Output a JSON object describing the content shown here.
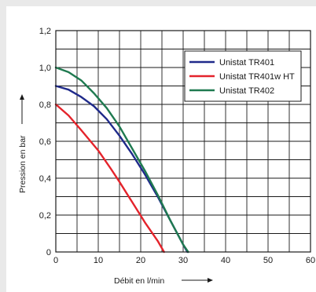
{
  "chart_data": {
    "type": "line",
    "title": "",
    "xlabel": "Débit en l/min",
    "ylabel": "Pression en bar",
    "xlim": [
      0,
      60
    ],
    "ylim": [
      0,
      1.2
    ],
    "xticks": [
      "0",
      "10",
      "20",
      "30",
      "40",
      "50",
      "60"
    ],
    "yticks": [
      "0",
      "0,2",
      "0,4",
      "0,6",
      "0,8",
      "1,0",
      "1,2"
    ],
    "grid": true,
    "legend_position": "top-right",
    "series": [
      {
        "name": "Unistat TR401",
        "color": "#1f2a8a",
        "x": [
          0,
          3,
          6,
          9,
          12,
          15,
          18,
          21,
          24,
          27,
          30,
          31
        ],
        "y": [
          0.9,
          0.88,
          0.84,
          0.79,
          0.72,
          0.63,
          0.53,
          0.42,
          0.3,
          0.17,
          0.04,
          0.0
        ]
      },
      {
        "name": "Unistat TR401w HT",
        "color": "#e4232b",
        "x": [
          0,
          3,
          6,
          10,
          13,
          15,
          18,
          21,
          24,
          25.5
        ],
        "y": [
          0.8,
          0.74,
          0.66,
          0.55,
          0.45,
          0.38,
          0.27,
          0.16,
          0.06,
          0.0
        ]
      },
      {
        "name": "Unistat TR402",
        "color": "#1f7a50",
        "x": [
          0,
          3,
          6,
          9,
          12,
          15,
          18,
          21,
          24,
          27,
          30,
          31.2
        ],
        "y": [
          1.0,
          0.975,
          0.93,
          0.86,
          0.78,
          0.68,
          0.56,
          0.44,
          0.31,
          0.17,
          0.04,
          0.0
        ]
      }
    ]
  }
}
